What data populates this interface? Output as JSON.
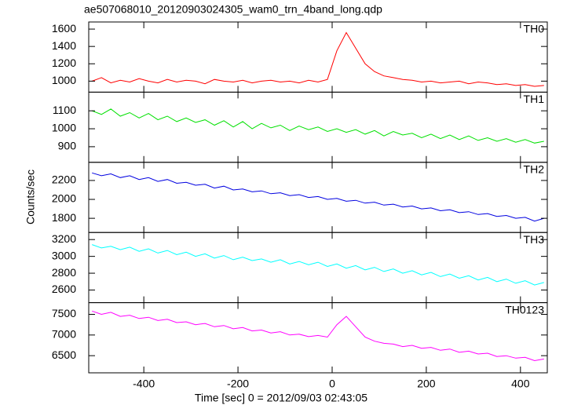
{
  "chart_data": {
    "type": "line",
    "title": "ae507068010_20120903024305_wam0_trn_4band_long.qdp",
    "xlabel": "Time [sec] 0 = 2012/09/03 02:43:05",
    "ylabel": "Counts/sec",
    "xlim": [
      -517,
      457
    ],
    "xticks": [
      -400,
      -200,
      0,
      200,
      400
    ],
    "grid": false,
    "x": [
      -510,
      -490,
      -470,
      -450,
      -430,
      -410,
      -390,
      -370,
      -350,
      -330,
      -310,
      -290,
      -270,
      -250,
      -230,
      -210,
      -190,
      -170,
      -150,
      -130,
      -110,
      -90,
      -70,
      -50,
      -30,
      -10,
      10,
      30,
      50,
      70,
      90,
      110,
      130,
      150,
      170,
      190,
      210,
      230,
      250,
      270,
      290,
      310,
      330,
      350,
      370,
      390,
      410,
      430,
      450
    ],
    "series": [
      {
        "name": "TH0",
        "color": "#ff0000",
        "ylim": [
          873,
          1682
        ],
        "yticks": [
          1000,
          1200,
          1400,
          1600
        ],
        "values": [
          1000,
          1040,
          980,
          1010,
          990,
          1030,
          1000,
          980,
          1020,
          990,
          1010,
          1000,
          970,
          1020,
          1000,
          990,
          1010,
          980,
          1000,
          1010,
          990,
          1000,
          980,
          1010,
          990,
          1020,
          1350,
          1560,
          1380,
          1200,
          1110,
          1060,
          1040,
          1020,
          1010,
          990,
          1000,
          980,
          990,
          1000,
          970,
          990,
          980,
          960,
          970,
          950,
          960,
          940,
          950
        ]
      },
      {
        "name": "TH1",
        "color": "#00e000",
        "ylim": [
          813,
          1204
        ],
        "yticks": [
          900,
          1000,
          1100
        ],
        "values": [
          1100,
          1080,
          1110,
          1070,
          1090,
          1060,
          1085,
          1050,
          1070,
          1040,
          1060,
          1035,
          1050,
          1020,
          1045,
          1010,
          1040,
          1000,
          1030,
          1005,
          1020,
          990,
          1015,
          995,
          1010,
          985,
          1000,
          980,
          995,
          970,
          990,
          960,
          985,
          965,
          975,
          950,
          970,
          945,
          965,
          940,
          960,
          935,
          950,
          930,
          945,
          925,
          940,
          920,
          930
        ]
      },
      {
        "name": "TH2",
        "color": "#0000e0",
        "ylim": [
          1650,
          2392
        ],
        "yticks": [
          1800,
          2000,
          2200
        ],
        "values": [
          2280,
          2250,
          2270,
          2230,
          2250,
          2210,
          2230,
          2190,
          2210,
          2170,
          2180,
          2150,
          2160,
          2120,
          2140,
          2100,
          2110,
          2080,
          2090,
          2060,
          2070,
          2040,
          2050,
          2020,
          2030,
          2000,
          2010,
          1980,
          1990,
          1960,
          1970,
          1940,
          1950,
          1920,
          1930,
          1900,
          1910,
          1880,
          1890,
          1860,
          1870,
          1840,
          1850,
          1820,
          1830,
          1800,
          1810,
          1770,
          1800
        ]
      },
      {
        "name": "TH3",
        "color": "#00ffff",
        "ylim": [
          2450,
          3284
        ],
        "yticks": [
          2600,
          2800,
          3000,
          3200
        ],
        "values": [
          3140,
          3100,
          3120,
          3080,
          3110,
          3060,
          3090,
          3040,
          3070,
          3020,
          3050,
          3000,
          3030,
          2980,
          3010,
          2960,
          2990,
          2950,
          2970,
          2930,
          2960,
          2910,
          2940,
          2900,
          2930,
          2880,
          2910,
          2860,
          2890,
          2840,
          2870,
          2820,
          2850,
          2800,
          2830,
          2780,
          2810,
          2760,
          2790,
          2740,
          2770,
          2720,
          2750,
          2700,
          2730,
          2680,
          2710,
          2660,
          2690
        ]
      },
      {
        "name": "TH0123",
        "color": "#ff00ff",
        "ylim": [
          6085,
          7783
        ],
        "yticks": [
          6500,
          7000,
          7500
        ],
        "values": [
          7580,
          7500,
          7550,
          7450,
          7480,
          7400,
          7430,
          7350,
          7380,
          7300,
          7320,
          7250,
          7280,
          7200,
          7230,
          7150,
          7180,
          7100,
          7120,
          7050,
          7080,
          7000,
          7020,
          6960,
          6990,
          6950,
          7250,
          7450,
          7200,
          6950,
          6850,
          6800,
          6780,
          6720,
          6750,
          6680,
          6700,
          6630,
          6660,
          6580,
          6610,
          6540,
          6560,
          6480,
          6500,
          6440,
          6460,
          6380,
          6420
        ]
      }
    ]
  }
}
